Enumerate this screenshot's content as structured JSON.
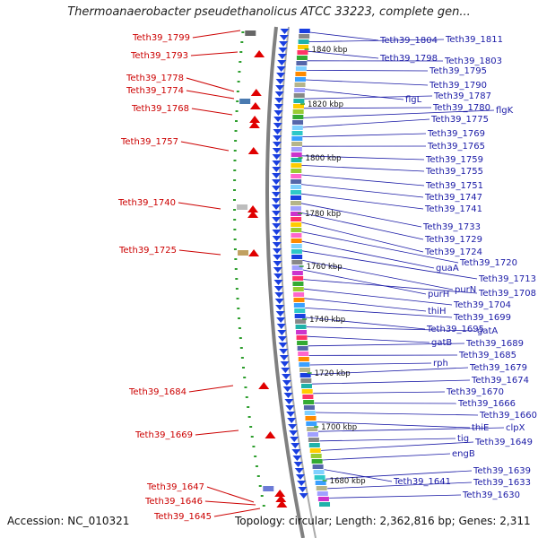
{
  "title": "Thermoanaerobacter pseudethanolicus ATCC 33223, complete gen...",
  "footer": {
    "accession": "Accession: NC_010321",
    "topology": "Topology: circular; Length: 2,362,816 bp; Genes: 2,311"
  },
  "colors": {
    "left_label": "#cc0000",
    "right_label": "#1a1aa6",
    "gene_arrow": "#1a3fe0",
    "backbone": "#808080",
    "tick": "#2e9e2e"
  },
  "kbp_markers": [
    "1840 kbp",
    "1820 kbp",
    "1800 kbp",
    "1780 kbp",
    "1760 kbp",
    "1740 kbp",
    "1720 kbp",
    "1700 kbp",
    "1680 kbp"
  ],
  "left_labels": [
    "Teth39_1799",
    "Teth39_1793",
    "Teth39_1778",
    "Teth39_1774",
    "Teth39_1768",
    "Teth39_1757",
    "Teth39_1740",
    "Teth39_1725",
    "Teth39_1684",
    "Teth39_1669",
    "Teth39_1647",
    "Teth39_1646",
    "Teth39_1645"
  ],
  "right_labels": [
    "Teth39_1804",
    "Teth39_1811",
    "Teth39_1798",
    "Teth39_1803",
    "Teth39_1795",
    "Teth39_1790",
    "flgL",
    "Teth39_1787",
    "Teth39_1780",
    "flgK",
    "Teth39_1775",
    "Teth39_1769",
    "Teth39_1765",
    "Teth39_1759",
    "Teth39_1755",
    "Teth39_1751",
    "Teth39_1747",
    "Teth39_1741",
    "Teth39_1733",
    "Teth39_1729",
    "Teth39_1724",
    "Teth39_1720",
    "guaA",
    "Teth39_1713",
    "purN",
    "purH",
    "Teth39_1708",
    "Teth39_1704",
    "thiH",
    "Teth39_1699",
    "Teth39_1695",
    "gatA",
    "gatB",
    "Teth39_1689",
    "Teth39_1685",
    "rph",
    "Teth39_1679",
    "Teth39_1674",
    "Teth39_1670",
    "Teth39_1666",
    "Teth39_1660",
    "thiE",
    "clpX",
    "tig",
    "Teth39_1649",
    "engB",
    "Teth39_1641",
    "Teth39_1639",
    "Teth39_1633",
    "Teth39_1630"
  ]
}
